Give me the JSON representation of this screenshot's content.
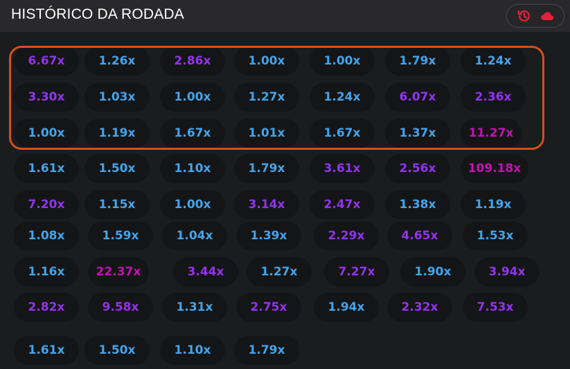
{
  "header": {
    "title": "HISTÓRICO DA RODADA",
    "history_button": {
      "icon": "history-clock-icon",
      "secondary_icon": "cloud-icon",
      "color": "#e8203a"
    }
  },
  "colors": {
    "low": "#43a4ec",
    "mid": "#9333ee",
    "high": "#c114b2",
    "highlight_border": "#d4501c"
  },
  "rows": [
    [
      {
        "v": "6.67x",
        "c": "purple"
      },
      {
        "v": "1.26x",
        "c": "blue"
      },
      {
        "v": "2.86x",
        "c": "purple"
      },
      {
        "v": "1.00x",
        "c": "blue"
      },
      {
        "v": "1.00x",
        "c": "blue"
      },
      {
        "v": "1.79x",
        "c": "blue"
      },
      {
        "v": "1.24x",
        "c": "blue"
      }
    ],
    [
      {
        "v": "3.30x",
        "c": "purple"
      },
      {
        "v": "1.03x",
        "c": "blue"
      },
      {
        "v": "1.00x",
        "c": "blue"
      },
      {
        "v": "1.27x",
        "c": "blue"
      },
      {
        "v": "1.24x",
        "c": "blue"
      },
      {
        "v": "6.07x",
        "c": "purple"
      },
      {
        "v": "2.36x",
        "c": "purple"
      }
    ],
    [
      {
        "v": "1.00x",
        "c": "blue"
      },
      {
        "v": "1.19x",
        "c": "blue"
      },
      {
        "v": "1.67x",
        "c": "blue"
      },
      {
        "v": "1.01x",
        "c": "blue"
      },
      {
        "v": "1.67x",
        "c": "blue"
      },
      {
        "v": "1.37x",
        "c": "blue"
      },
      {
        "v": "11.27x",
        "c": "pink"
      }
    ],
    [
      {
        "v": "1.61x",
        "c": "blue"
      },
      {
        "v": "1.50x",
        "c": "blue"
      },
      {
        "v": "1.10x",
        "c": "blue"
      },
      {
        "v": "1.79x",
        "c": "blue"
      },
      {
        "v": "3.61x",
        "c": "purple"
      },
      {
        "v": "2.56x",
        "c": "purple"
      },
      {
        "v": "109.18x",
        "c": "pink"
      }
    ],
    [
      {
        "v": "7.20x",
        "c": "purple"
      },
      {
        "v": "1.15x",
        "c": "blue"
      },
      {
        "v": "1.00x",
        "c": "blue"
      },
      {
        "v": "3.14x",
        "c": "purple"
      },
      {
        "v": "2.47x",
        "c": "purple"
      },
      {
        "v": "1.38x",
        "c": "blue"
      },
      {
        "v": "1.19x",
        "c": "blue"
      }
    ],
    [
      {
        "v": "1.08x",
        "c": "blue"
      },
      {
        "v": "1.59x",
        "c": "blue"
      },
      {
        "v": "1.04x",
        "c": "blue"
      },
      {
        "v": "1.39x",
        "c": "blue"
      },
      {
        "v": "2.29x",
        "c": "purple"
      },
      {
        "v": "4.65x",
        "c": "purple"
      },
      {
        "v": "1.53x",
        "c": "blue"
      }
    ],
    [
      {
        "v": "1.16x",
        "c": "blue"
      },
      {
        "v": "22.37x",
        "c": "pink"
      },
      {
        "v": "3.44x",
        "c": "purple"
      },
      {
        "v": "1.27x",
        "c": "blue"
      },
      {
        "v": "7.27x",
        "c": "purple"
      },
      {
        "v": "1.90x",
        "c": "blue"
      },
      {
        "v": "3.94x",
        "c": "purple"
      }
    ],
    [
      {
        "v": "2.82x",
        "c": "purple"
      },
      {
        "v": "9.58x",
        "c": "purple"
      },
      {
        "v": "1.31x",
        "c": "blue"
      },
      {
        "v": "2.75x",
        "c": "purple"
      },
      {
        "v": "1.94x",
        "c": "blue"
      },
      {
        "v": "2.32x",
        "c": "purple"
      },
      {
        "v": "7.53x",
        "c": "purple"
      }
    ],
    [
      {
        "v": "1.61x",
        "c": "blue"
      },
      {
        "v": "1.50x",
        "c": "blue"
      },
      {
        "v": "1.10x",
        "c": "blue"
      },
      {
        "v": "1.79x",
        "c": "blue"
      }
    ]
  ]
}
